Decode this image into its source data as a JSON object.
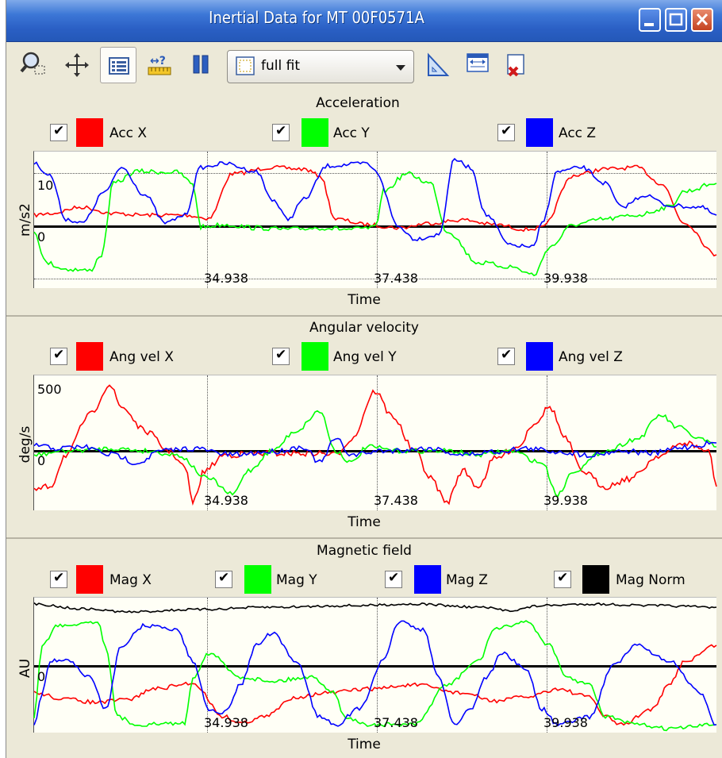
{
  "window": {
    "title": "Inertial Data for MT 00F0571A",
    "title_bar_color": "#2a5fc4"
  },
  "toolbar": {
    "zoom_value": "full fit",
    "icons": [
      "zoom-region-icon",
      "pan-icon",
      "legend-toggle-icon",
      "axis-scale-icon",
      "pause-icon",
      "zoom-fit-icon",
      "ruler-icon",
      "fit-columns-icon",
      "clear-icon"
    ]
  },
  "time_ticks": [
    "34.938",
    "37.438",
    "39.938"
  ],
  "x_label": "Time",
  "panels": [
    {
      "title": "Acceleration",
      "ylabel": "m/s2",
      "yticks": [
        "10",
        "0"
      ],
      "legend": [
        {
          "name": "Acc X",
          "color": "#ff0000"
        },
        {
          "name": "Acc Y",
          "color": "#00ff00"
        },
        {
          "name": "Acc Z",
          "color": "#0000ff"
        }
      ]
    },
    {
      "title": "Angular velocity",
      "ylabel": "deg/s",
      "yticks": [
        "500",
        "0"
      ],
      "legend": [
        {
          "name": "Ang vel X",
          "color": "#ff0000"
        },
        {
          "name": "Ang vel Y",
          "color": "#00ff00"
        },
        {
          "name": "Ang vel Z",
          "color": "#0000ff"
        }
      ]
    },
    {
      "title": "Magnetic field",
      "ylabel": "AU",
      "yticks": [
        "0"
      ],
      "legend": [
        {
          "name": "Mag X",
          "color": "#ff0000"
        },
        {
          "name": "Mag Y",
          "color": "#00ff00"
        },
        {
          "name": "Mag Z",
          "color": "#0000ff"
        },
        {
          "name": "Mag Norm",
          "color": "#000000"
        }
      ]
    }
  ]
}
